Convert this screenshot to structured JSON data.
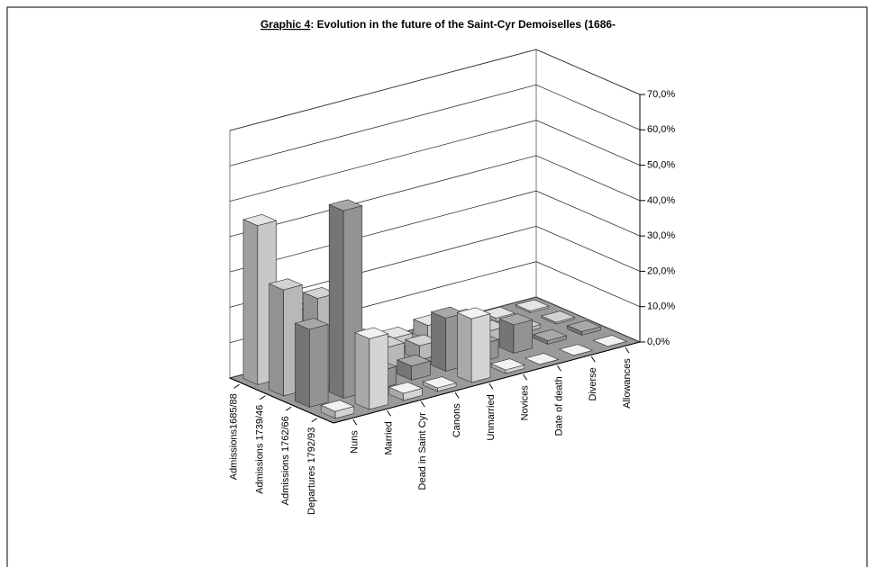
{
  "chart_data": {
    "type": "bar3d",
    "title_label": "Graphic 4",
    "title": ": Evolution in the future of the Saint-Cyr Demoiselles (1686-",
    "categories": [
      "Nuns",
      "Married",
      "Dead in Saint Cyr",
      "Canons",
      "Unmarried",
      "Novices",
      "Date of death",
      "Diverse",
      "Allowances"
    ],
    "series": [
      {
        "name": "Admissions1685/88",
        "color": "#e4e4e4",
        "values": [
          45,
          18,
          8,
          5,
          3,
          4,
          3,
          1,
          0.5
        ]
      },
      {
        "name": "Admissions 1739/46",
        "color": "#d2d2d2",
        "values": [
          30,
          25,
          6,
          6,
          4,
          2,
          3,
          1,
          0.5
        ]
      },
      {
        "name": "Admissions 1762/66",
        "color": "#a8a8a8",
        "values": [
          22,
          53,
          5,
          4,
          15,
          5,
          8,
          1,
          1
        ]
      },
      {
        "name": "Departures 1792/93",
        "color": "#f2f2f2",
        "values": [
          2,
          20,
          2,
          1,
          18,
          1,
          0,
          0,
          0
        ]
      }
    ],
    "ylim": [
      0,
      70
    ],
    "yticks": [
      {
        "value": 0,
        "label": "0,0%"
      },
      {
        "value": 10,
        "label": "10,0%"
      },
      {
        "value": 20,
        "label": "20,0%"
      },
      {
        "value": 30,
        "label": "30,0%"
      },
      {
        "value": 40,
        "label": "40,0%"
      },
      {
        "value": 50,
        "label": "50,0%"
      },
      {
        "value": 60,
        "label": "60,0%"
      },
      {
        "value": 70,
        "label": "70,0%"
      }
    ],
    "grid": true
  }
}
